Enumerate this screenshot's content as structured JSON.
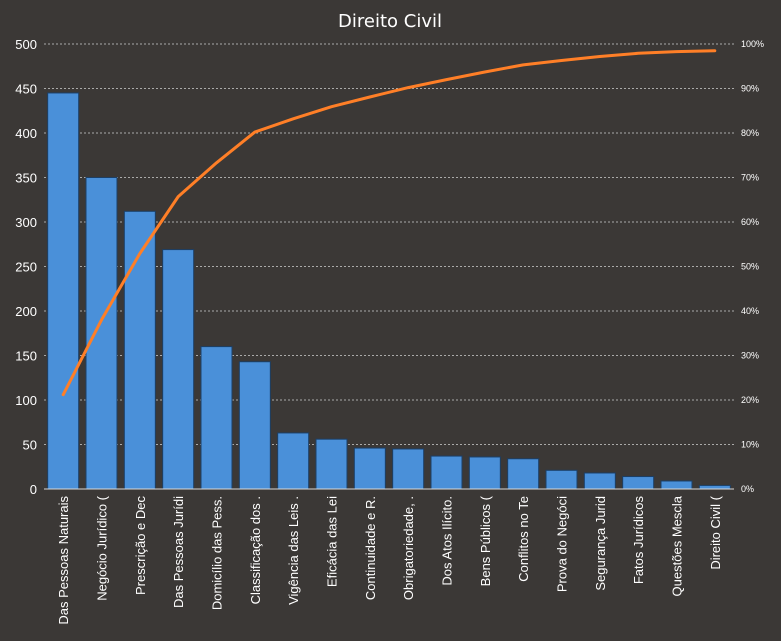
{
  "chart_data": {
    "type": "bar",
    "title": "Direito Civil",
    "categories": [
      "Das Pessoas Naturais",
      "Negócio Jurídico (",
      "Prescrição e Dec",
      "Das Pessoas Jurídi",
      "Domicílio das Pess.",
      "Classificação dos .",
      "Vigência das Leis .",
      "Eficácia das Lei",
      "Continuidade  e R.",
      "Obrigatoriedade, .",
      "Dos Atos Ilícito.",
      "Bens Públicos (",
      "Conflitos no Te",
      "Prova do Negóci",
      "Segurança Jurid",
      "Fatos Jurídicos",
      "Questões Mescla",
      "Direito Civil ("
    ],
    "series": [
      {
        "type": "bar",
        "values": [
          445,
          350,
          312,
          269,
          160,
          143,
          63,
          56,
          46,
          45,
          37,
          36,
          34,
          21,
          18,
          14,
          9,
          4
        ]
      },
      {
        "type": "line",
        "axis": "secondary",
        "values": [
          21.2,
          38.0,
          52.9,
          65.7,
          73.3,
          80.2,
          83.2,
          85.9,
          88.1,
          90.2,
          92.0,
          93.7,
          95.3,
          96.3,
          97.2,
          97.9,
          98.3,
          98.5
        ]
      }
    ],
    "ylim": [
      0,
      500
    ],
    "yticks": [
      "0",
      "50",
      "100",
      "150",
      "200",
      "250",
      "300",
      "350",
      "400",
      "450",
      "500"
    ],
    "y2lim": [
      0,
      100
    ],
    "y2ticks": [
      "0%",
      "10%",
      "20%",
      "30%",
      "40%",
      "50%",
      "60%",
      "70%",
      "80%",
      "90%",
      "100%"
    ],
    "grid": true,
    "colors": {
      "background": "#3b3836",
      "bar_fill": "#4a90d9",
      "bar_stroke": "#1c3f66",
      "line": "#ff7f27",
      "grid": "#cfcfcf",
      "text": "#ffffff"
    }
  }
}
